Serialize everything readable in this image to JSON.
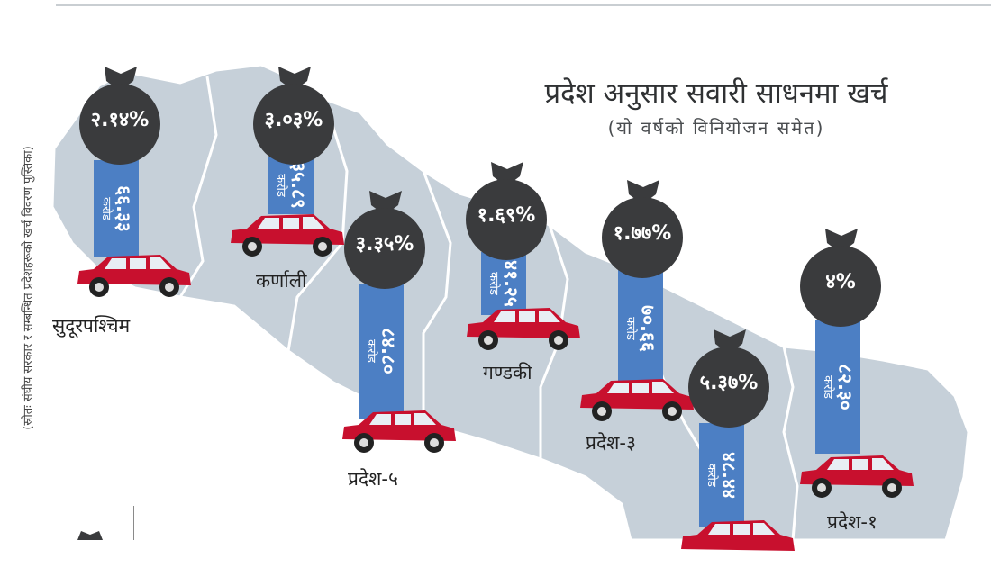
{
  "title": "प्रदेश अनुसार सवारी साधनमा खर्च",
  "subtitle": "(यो वर्षको विनियोजन समेत)",
  "source_note": "(स्रोतः संघीय सरकार र सम्बन्धित प्रदेशहरूको खर्च विवरण पुस्तिका)",
  "unit_label": "करोड",
  "colors": {
    "bar": "#4c7fc4",
    "bag": "#3a3b3d",
    "car": "#c8102e",
    "map": "#c6d0d9"
  },
  "provinces": [
    {
      "name": "सुदूरपश्चिम",
      "amount": "६६.३३",
      "share": "२.१४%"
    },
    {
      "name": "कर्णाली",
      "amount": "३५.८९",
      "share": "३.०३%"
    },
    {
      "name": "प्रदेश-५",
      "amount": "८४.८०",
      "share": "३.३५%"
    },
    {
      "name": "गण्डकी",
      "amount": "४१.२५",
      "share": "१.६९%"
    },
    {
      "name": "प्रदेश-३",
      "amount": "७०.६६",
      "share": "१.७७%"
    },
    {
      "name": "",
      "amount": "४८.४४",
      "share": "५.३७%"
    },
    {
      "name": "प्रदेश-१",
      "amount": "८२.३०",
      "share": "४%"
    }
  ]
}
